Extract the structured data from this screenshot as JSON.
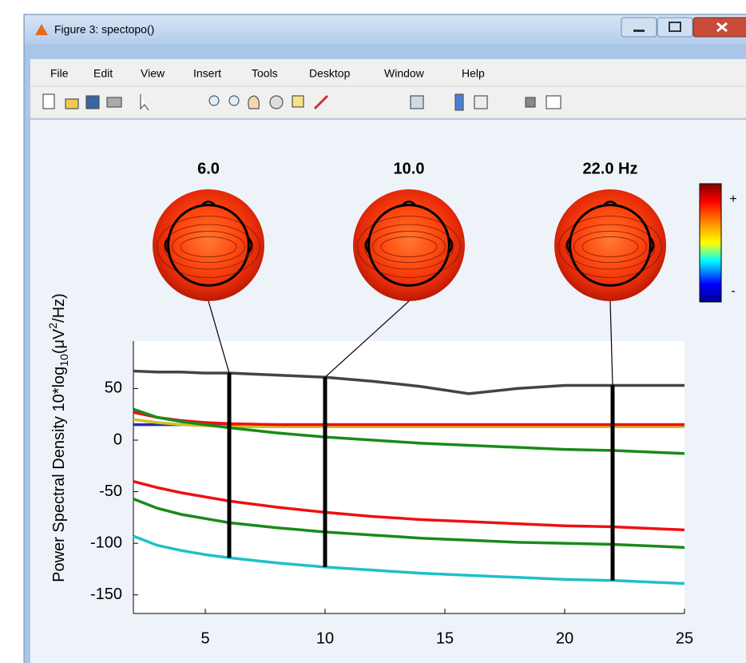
{
  "window": {
    "title": "Figure 3: spectopo()",
    "menu": [
      "File",
      "Edit",
      "View",
      "Insert",
      "Tools",
      "Desktop",
      "Window",
      "Help"
    ]
  },
  "chart_data": {
    "type": "line",
    "x": [
      2,
      3,
      4,
      5,
      6,
      8,
      10,
      12,
      14,
      16,
      18,
      20,
      22,
      24,
      25
    ],
    "series": [
      {
        "color": "#444444",
        "values": [
          67,
          66,
          66,
          65,
          65,
          63,
          61,
          57,
          52,
          45,
          50,
          53,
          53,
          53,
          53
        ]
      },
      {
        "color": "#2a2ab0",
        "values": [
          15,
          15,
          15,
          15,
          15,
          15,
          15,
          15,
          15,
          15,
          15,
          15,
          15,
          15,
          15
        ]
      },
      {
        "color": "#cfc024",
        "values": [
          20,
          17,
          15,
          14,
          13,
          13,
          13,
          13,
          13,
          13,
          13,
          13,
          13,
          13,
          13
        ]
      },
      {
        "color": "#ee1111",
        "values": [
          27,
          22,
          19,
          17,
          16,
          15,
          15,
          15,
          15,
          15,
          15,
          15,
          15,
          15,
          15
        ]
      },
      {
        "color": "#1a8a1a",
        "values": [
          30,
          22,
          18,
          15,
          12,
          7,
          3,
          0,
          -3,
          -5,
          -7,
          -9,
          -10,
          -12,
          -13
        ]
      },
      {
        "color": "#ee1111",
        "values": [
          -40,
          -46,
          -51,
          -55,
          -59,
          -65,
          -70,
          -74,
          -77,
          -79,
          -81,
          -83,
          -84,
          -86,
          -87
        ]
      },
      {
        "color": "#1a8a1a",
        "values": [
          -57,
          -66,
          -72,
          -76,
          -80,
          -85,
          -89,
          -92,
          -95,
          -97,
          -99,
          -100,
          -101,
          -103,
          -104
        ]
      },
      {
        "color": "#1fc0c8",
        "values": [
          -93,
          -102,
          -107,
          -111,
          -114,
          -119,
          -123,
          -126,
          -129,
          -131,
          -133,
          -135,
          -136,
          -138,
          -139
        ]
      }
    ],
    "xlim": [
      2,
      25
    ],
    "ylim": [
      -168,
      96
    ],
    "xticks": [
      5,
      10,
      15,
      20,
      25
    ],
    "yticks": [
      -150,
      -100,
      -50,
      0,
      50
    ],
    "grid": false,
    "ylabel_parts": [
      "Power Spectral Density 10*log",
      "10",
      "(μV",
      "2",
      "/Hz)"
    ],
    "markers": [
      {
        "freq": 6,
        "label": "6.0"
      },
      {
        "freq": 10,
        "label": "10.0"
      },
      {
        "freq": 22,
        "label": "22.0 Hz"
      }
    ],
    "colorbar": {
      "labels": [
        "+",
        "-"
      ]
    }
  }
}
